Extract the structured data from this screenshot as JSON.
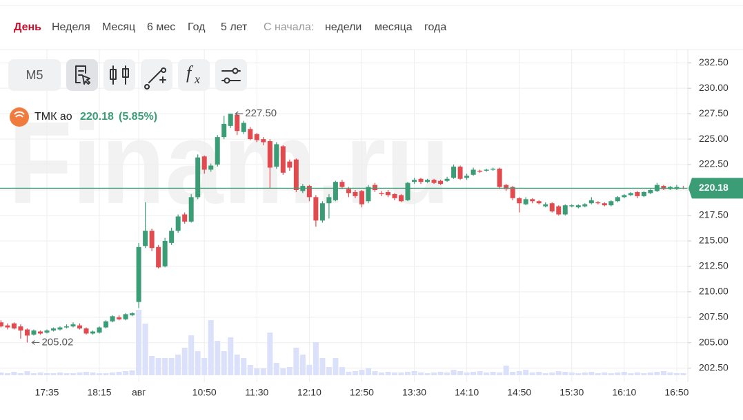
{
  "tabs": {
    "items": [
      "День",
      "Неделя",
      "Месяц",
      "6 мес",
      "Год",
      "5 лет"
    ],
    "since_label": "С начала:",
    "since_items": [
      "недели",
      "месяца",
      "года"
    ]
  },
  "toolbar": {
    "interval": "M5"
  },
  "watermark": "Finam.ru",
  "chart_data": {
    "type": "candlestick",
    "name": "ТМК ао",
    "price": 220.18,
    "change": {
      "value": 5.85,
      "label": "(5.85%)"
    },
    "up_color": "#3a9d76",
    "down_color": "#e14a4f",
    "volume_color": "#dbe0fb",
    "price_line_color": "#3a9d76",
    "high_label": {
      "value": 227.5,
      "label": "227.50"
    },
    "low_label": {
      "value": 205.02,
      "label": "205.02"
    },
    "categories": [
      null,
      null,
      null,
      null,
      null,
      null,
      null,
      "17:35",
      null,
      null,
      null,
      null,
      null,
      null,
      null,
      "18:15",
      null,
      null,
      null,
      null,
      null,
      "авг",
      null,
      null,
      null,
      null,
      null,
      null,
      null,
      null,
      null,
      "10:50",
      null,
      null,
      null,
      null,
      null,
      null,
      null,
      "11:30",
      null,
      null,
      null,
      null,
      null,
      null,
      null,
      "12:10",
      null,
      null,
      null,
      null,
      null,
      null,
      null,
      "12:50",
      null,
      null,
      null,
      null,
      null,
      null,
      null,
      "13:30",
      null,
      null,
      null,
      null,
      null,
      null,
      null,
      "14:10",
      null,
      null,
      null,
      null,
      null,
      null,
      null,
      "14:50",
      null,
      null,
      null,
      null,
      null,
      null,
      null,
      "15:30",
      null,
      null,
      null,
      null,
      null,
      null,
      null,
      "16:10",
      null,
      null,
      null,
      null,
      null,
      null,
      null,
      "16:50",
      null
    ],
    "open": [
      207.0,
      206.7,
      206.9,
      206.6,
      206.3,
      205.8,
      206.1,
      206.0,
      206.2,
      206.3,
      206.5,
      206.6,
      206.7,
      206.4,
      205.9,
      206.0,
      206.5,
      207.1,
      207.5,
      207.3,
      207.7,
      209.0,
      214.5,
      216.0,
      214.4,
      212.5,
      214.8,
      216.0,
      217.6,
      216.9,
      219.3,
      223.3,
      222.0,
      222.5,
      225.2,
      226.3,
      227.4,
      225.7,
      226.0,
      225.5,
      225.0,
      224.8,
      222.3,
      224.3,
      222.8,
      223.0,
      219.9,
      220.4,
      219.3,
      217.0,
      218.7,
      219.0,
      220.8,
      220.1,
      219.8,
      219.9,
      218.9,
      220.5,
      219.7,
      219.8,
      219.6,
      219.5,
      219.0,
      220.8,
      221.1,
      220.8,
      221.0,
      220.9,
      220.9,
      221.2,
      222.3,
      221.2,
      221.5,
      221.9,
      221.9,
      222.0,
      222.1,
      220.5,
      220.3,
      219.2,
      218.6,
      219.1,
      218.9,
      218.4,
      218.7,
      218.4,
      217.6,
      218.4,
      218.3,
      218.4,
      218.7,
      218.8,
      218.7,
      218.5,
      218.9,
      219.3,
      219.5,
      219.8,
      219.4,
      219.7,
      219.9,
      220.4,
      220.1,
      220.1,
      220.2
    ],
    "close": [
      206.6,
      206.5,
      206.4,
      206.2,
      205.7,
      206.2,
      205.9,
      206.2,
      206.4,
      206.5,
      206.6,
      206.8,
      206.4,
      205.9,
      206.1,
      206.5,
      207.1,
      207.6,
      207.3,
      207.8,
      207.9,
      214.4,
      216.0,
      214.3,
      212.4,
      215.0,
      216.0,
      217.4,
      216.9,
      219.3,
      223.2,
      222.0,
      222.4,
      225.2,
      226.5,
      227.5,
      225.8,
      226.6,
      225.0,
      224.9,
      224.7,
      222.2,
      224.5,
      221.7,
      222.2,
      220.0,
      220.4,
      219.3,
      217.0,
      218.7,
      219.3,
      220.8,
      220.3,
      219.7,
      219.4,
      218.6,
      220.3,
      220.0,
      219.6,
      219.5,
      219.2,
      218.9,
      220.7,
      221.0,
      220.8,
      221.0,
      220.7,
      220.6,
      221.1,
      222.3,
      221.1,
      221.4,
      222.0,
      221.8,
      222.0,
      222.1,
      220.3,
      220.1,
      219.2,
      218.7,
      219.1,
      218.9,
      218.7,
      218.6,
      217.9,
      217.6,
      218.5,
      218.5,
      218.5,
      218.6,
      219.0,
      218.7,
      218.5,
      218.9,
      219.3,
      219.5,
      219.7,
      219.4,
      219.8,
      220.0,
      220.5,
      220.1,
      220.3,
      220.3,
      220.18
    ],
    "high": [
      207.2,
      206.9,
      207.0,
      206.8,
      206.4,
      206.3,
      206.2,
      206.3,
      206.5,
      206.6,
      206.8,
      207.0,
      206.9,
      206.5,
      206.2,
      206.6,
      207.2,
      207.7,
      207.7,
      207.9,
      208.0,
      214.8,
      218.8,
      216.2,
      214.6,
      215.3,
      216.3,
      217.6,
      217.8,
      219.6,
      223.5,
      223.4,
      222.6,
      225.4,
      227.3,
      227.5,
      227.4,
      226.8,
      226.2,
      225.6,
      225.2,
      225.0,
      224.7,
      224.4,
      223.0,
      223.1,
      220.6,
      220.5,
      219.5,
      218.9,
      219.6,
      220.9,
      221.0,
      220.3,
      220.0,
      220.0,
      220.5,
      220.7,
      219.9,
      220.0,
      219.7,
      219.6,
      220.8,
      221.2,
      221.2,
      221.1,
      221.1,
      221.0,
      221.3,
      222.5,
      222.4,
      221.6,
      222.2,
      222.0,
      222.1,
      222.2,
      222.2,
      220.6,
      220.4,
      219.3,
      219.3,
      219.2,
      219.0,
      218.8,
      218.8,
      218.5,
      218.6,
      218.6,
      218.6,
      218.7,
      219.3,
      218.9,
      218.8,
      219.0,
      219.4,
      219.6,
      219.8,
      219.9,
      219.9,
      220.1,
      220.7,
      220.5,
      220.4,
      220.5,
      220.4
    ],
    "low": [
      206.5,
      206.3,
      206.3,
      205.4,
      205.02,
      205.7,
      205.8,
      205.9,
      206.1,
      206.2,
      206.4,
      206.5,
      206.3,
      205.8,
      205.8,
      205.9,
      206.4,
      207.0,
      207.2,
      207.2,
      207.6,
      208.4,
      214.3,
      214.0,
      212.3,
      212.4,
      214.6,
      215.8,
      216.7,
      216.8,
      219.1,
      221.6,
      221.8,
      222.3,
      225.0,
      226.1,
      225.4,
      225.5,
      224.9,
      224.7,
      224.4,
      220.2,
      222.1,
      221.5,
      221.9,
      219.8,
      219.7,
      218.9,
      216.4,
      216.8,
      217.2,
      218.9,
      220.1,
      219.3,
      219.2,
      218.3,
      218.7,
      219.8,
      219.4,
      219.3,
      219.0,
      218.8,
      218.9,
      220.6,
      220.6,
      220.7,
      220.6,
      220.5,
      220.8,
      221.1,
      221.0,
      221.0,
      221.4,
      221.7,
      221.8,
      221.9,
      220.1,
      219.9,
      219.0,
      217.8,
      218.5,
      218.7,
      218.6,
      218.3,
      217.8,
      217.5,
      217.5,
      218.3,
      218.2,
      218.3,
      218.6,
      218.6,
      218.4,
      218.4,
      218.8,
      219.2,
      219.4,
      219.2,
      219.3,
      219.6,
      219.8,
      220.0,
      220.0,
      220.0,
      220.1
    ],
    "volume": [
      4,
      3,
      5,
      3,
      6,
      3,
      4,
      3,
      3,
      4,
      3,
      3,
      4,
      5,
      4,
      3,
      3,
      4,
      5,
      6,
      7,
      95,
      75,
      28,
      25,
      25,
      25,
      30,
      40,
      58,
      35,
      25,
      80,
      50,
      35,
      55,
      30,
      25,
      15,
      10,
      10,
      62,
      18,
      10,
      12,
      40,
      30,
      15,
      48,
      25,
      12,
      25,
      12,
      5,
      6,
      8,
      10,
      6,
      4,
      5,
      4,
      4,
      5,
      6,
      4,
      3,
      4,
      5,
      4,
      8,
      6,
      4,
      5,
      6,
      4,
      5,
      4,
      14,
      5,
      6,
      8,
      4,
      5,
      3,
      4,
      6,
      5,
      4,
      3,
      4,
      5,
      3,
      4,
      3,
      4,
      5,
      3,
      4,
      3,
      4,
      5,
      6,
      4,
      3,
      3
    ],
    "volume_lim": [
      0,
      100
    ],
    "ylim": [
      201.6,
      233.8
    ],
    "yticks": [
      {
        "value": 202.5,
        "label": "202.50"
      },
      {
        "value": 205,
        "label": "205.00"
      },
      {
        "value": 207.5,
        "label": "207.50"
      },
      {
        "value": 210,
        "label": "210.00"
      },
      {
        "value": 212.5,
        "label": "212.50"
      },
      {
        "value": 215,
        "label": "215.00"
      },
      {
        "value": 217.5,
        "label": "217.50"
      },
      {
        "value": 220,
        "label": "220.00"
      },
      {
        "value": 222.5,
        "label": "222.50"
      },
      {
        "value": 225,
        "label": "225.00"
      },
      {
        "value": 227.5,
        "label": "227.50"
      },
      {
        "value": 230,
        "label": "230.00"
      },
      {
        "value": 232.5,
        "label": "232.50"
      }
    ],
    "grid": true
  }
}
